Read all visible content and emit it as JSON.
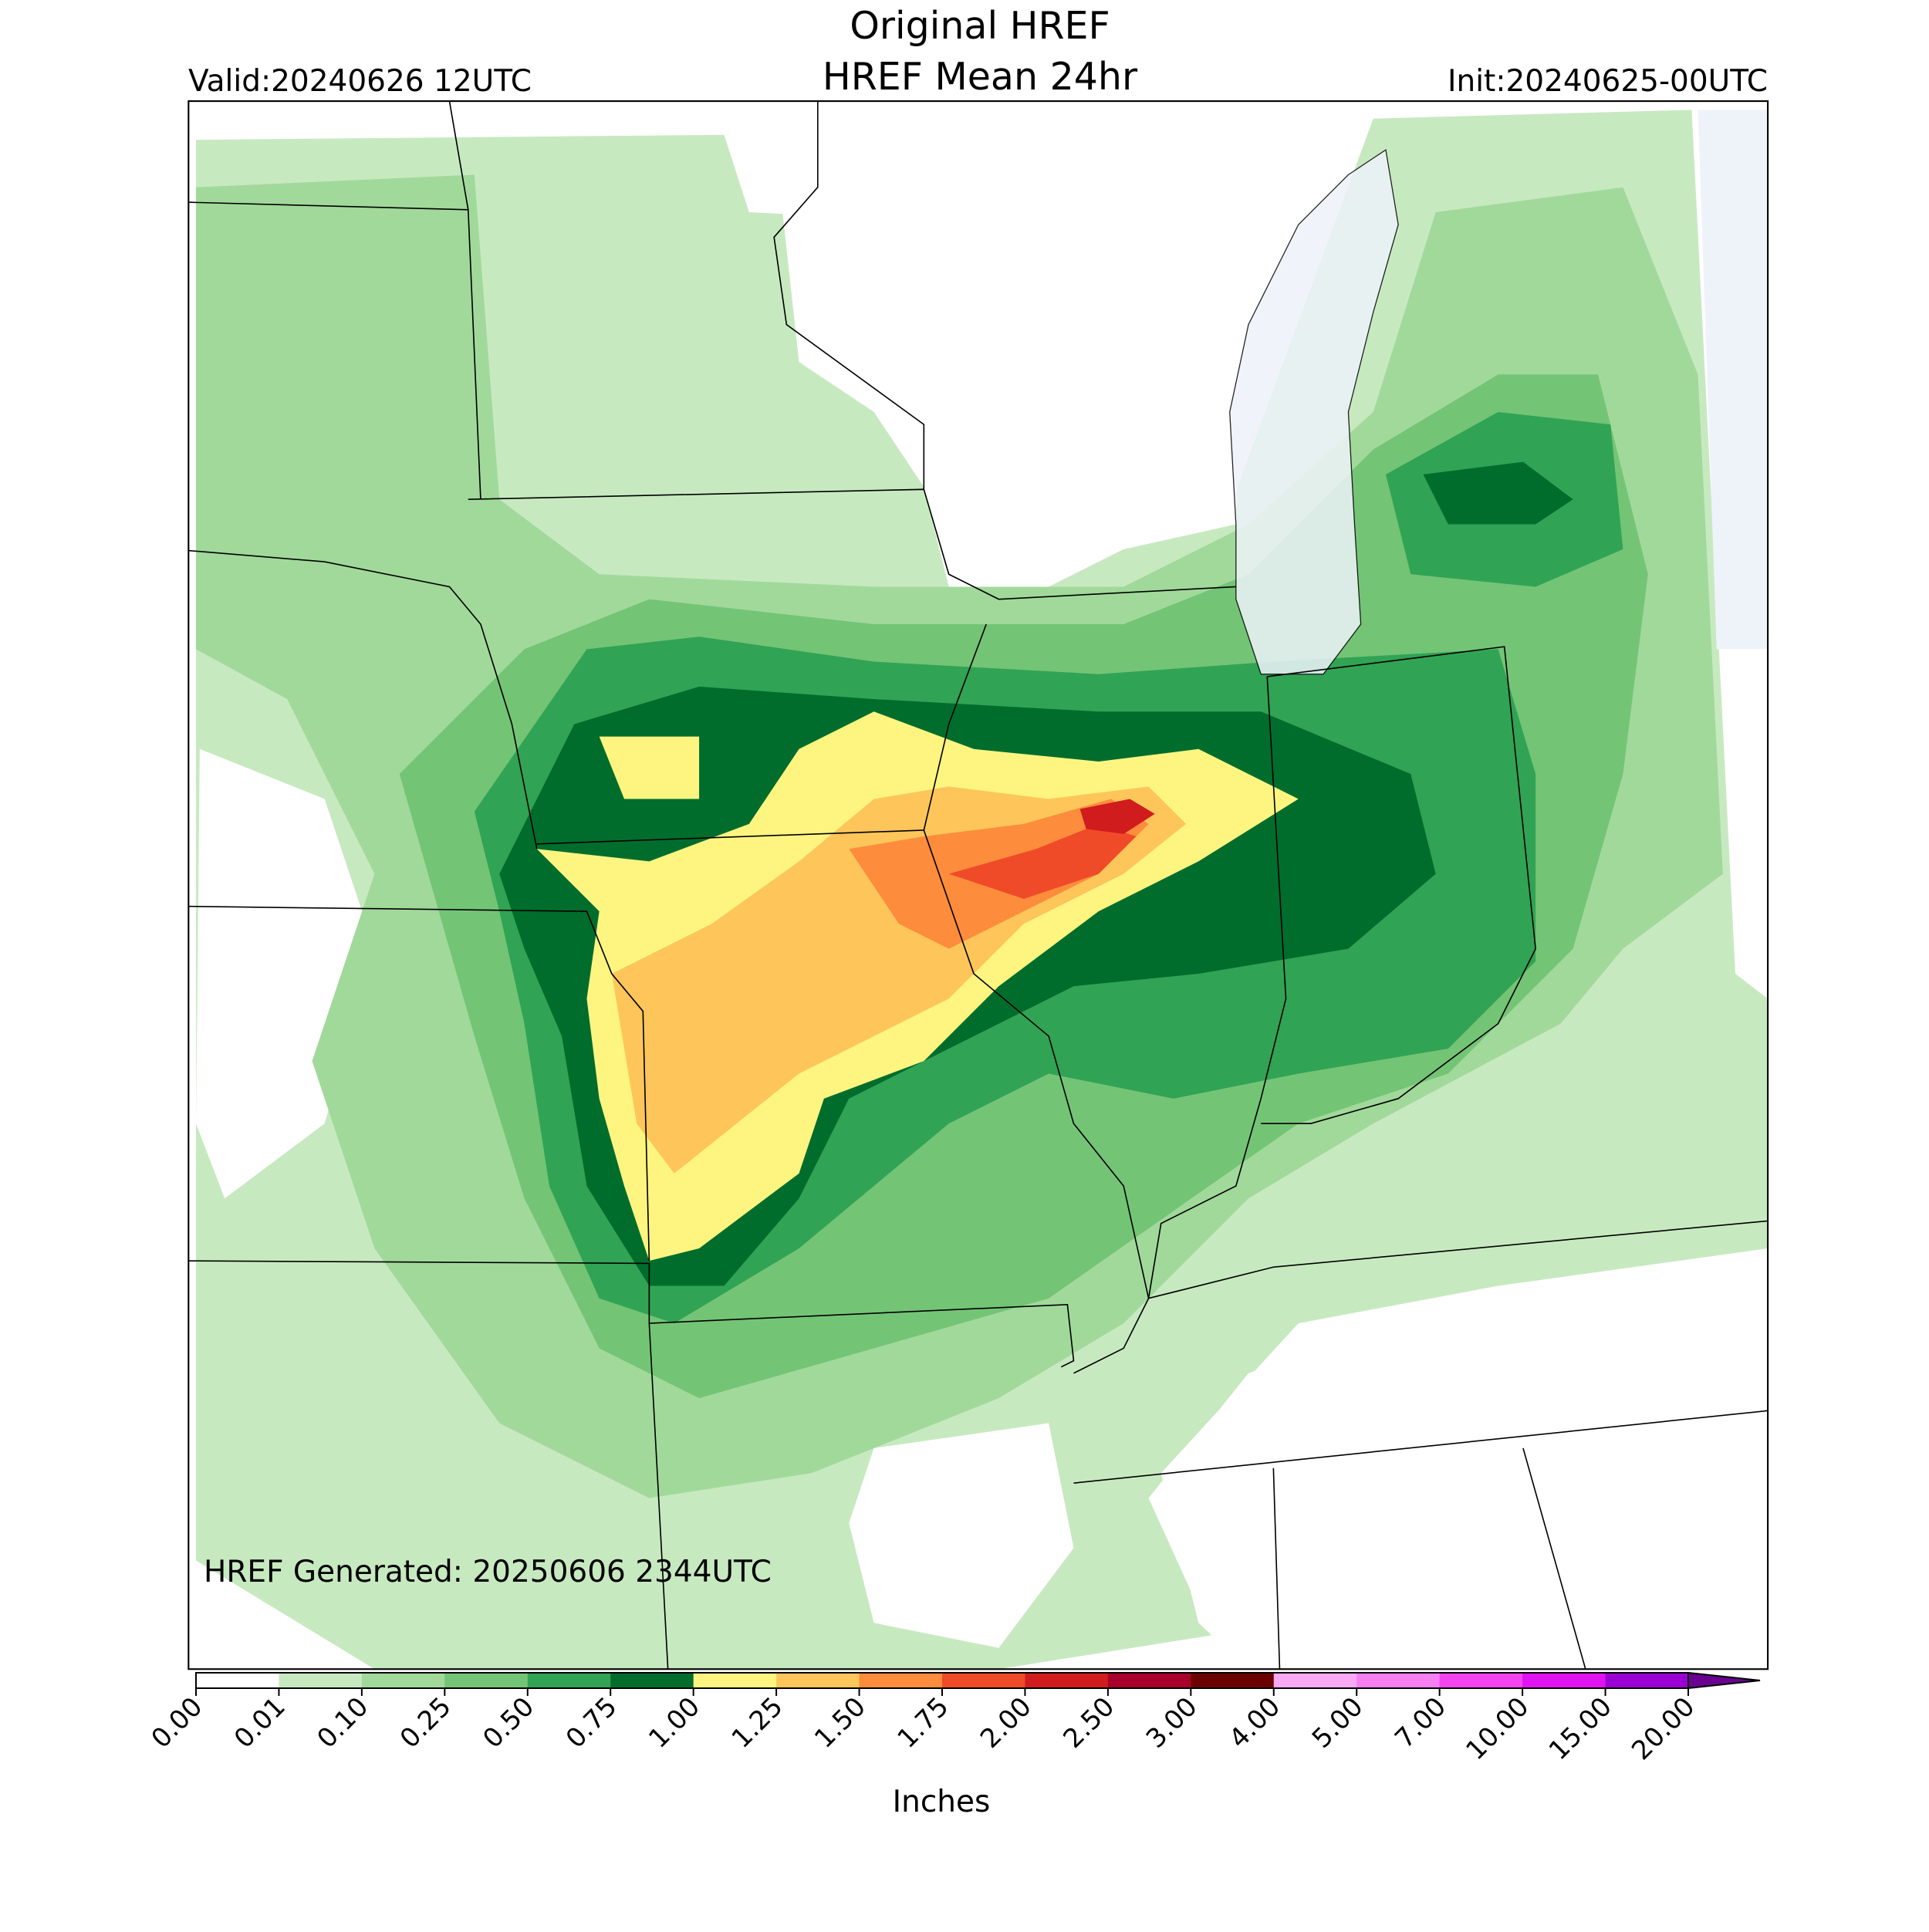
{
  "header": {
    "title": "Original HREF",
    "subtitle": "HREF Mean 24hr",
    "valid": "Valid:20240626 12UTC",
    "init": "Init:20240625-00UTC"
  },
  "map": {
    "generated": "HREF Generated: 20250606 2344UTC"
  },
  "colorbar": {
    "label": "Inches",
    "ticks": [
      {
        "value": 0,
        "label": "0.00"
      },
      {
        "value": 0.01,
        "label": "0.01"
      },
      {
        "value": 0.1,
        "label": "0.10"
      },
      {
        "value": 0.25,
        "label": "0.25"
      },
      {
        "value": 0.5,
        "label": "0.50"
      },
      {
        "value": 0.75,
        "label": "0.75"
      },
      {
        "value": 1,
        "label": "1.00"
      },
      {
        "value": 1.25,
        "label": "1.25"
      },
      {
        "value": 1.5,
        "label": "1.50"
      },
      {
        "value": 1.75,
        "label": "1.75"
      },
      {
        "value": 2,
        "label": "2.00"
      },
      {
        "value": 2.5,
        "label": "2.50"
      },
      {
        "value": 3,
        "label": "3.00"
      },
      {
        "value": 4,
        "label": "4.00"
      },
      {
        "value": 5,
        "label": "5.00"
      },
      {
        "value": 7,
        "label": "7.00"
      },
      {
        "value": 10,
        "label": "10.00"
      },
      {
        "value": 15,
        "label": "15.00"
      },
      {
        "value": 20,
        "label": "20.00"
      }
    ],
    "colors": [
      "#ffffff",
      "#c7e9c0",
      "#a1d99b",
      "#74c476",
      "#31a354",
      "#006d2c",
      "#fef581",
      "#fec65a",
      "#fd8c3c",
      "#f04b29",
      "#d01c1d",
      "#a8002b",
      "#6b0000",
      "#f9a8f4",
      "#f67ff2",
      "#f444f0",
      "#e014f0",
      "#9a00d4"
    ],
    "extend_color": "#6a0090"
  }
}
